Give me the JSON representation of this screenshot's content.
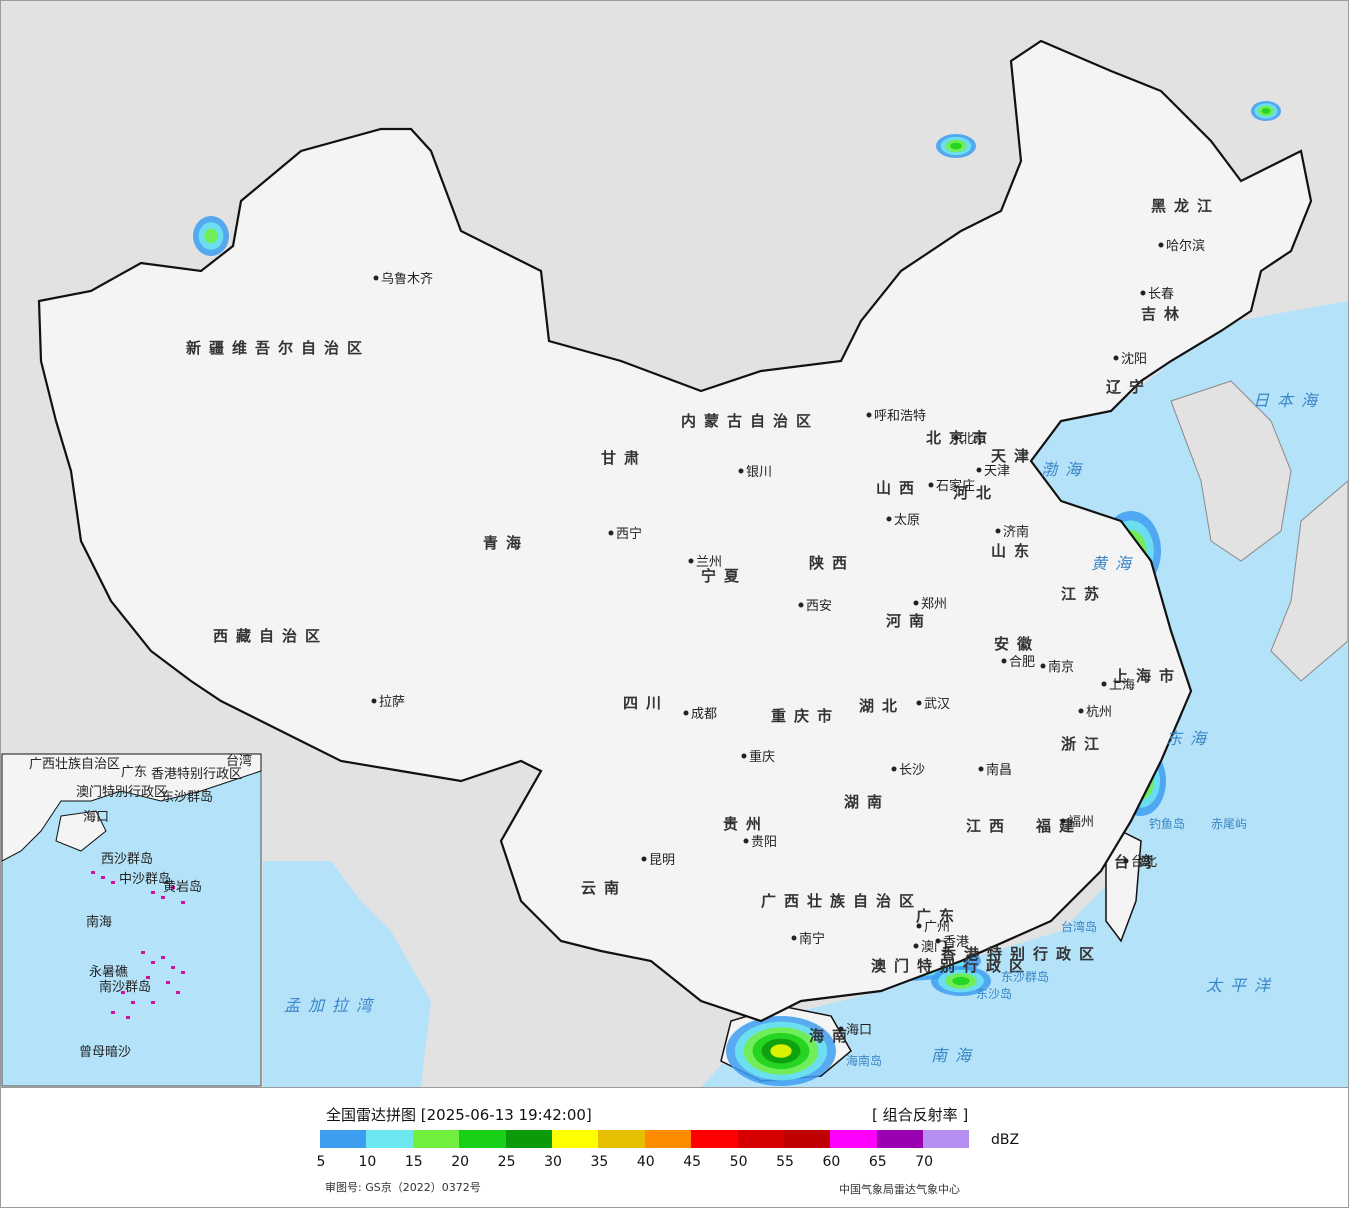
{
  "legend": {
    "title": "全国雷达拼图 [2025-06-13 19:42:00]",
    "product": "[ 组合反射率 ]",
    "unit": "dBZ",
    "scale_colors": [
      "#3d9ef0",
      "#6ee8f0",
      "#72f040",
      "#18d018",
      "#0a9a0a",
      "#ffff00",
      "#e6c000",
      "#ff8c00",
      "#ff0000",
      "#d60000",
      "#c00000",
      "#ff00ff",
      "#9900b0",
      "#b48ef0"
    ],
    "ticks": [
      "5",
      "10",
      "15",
      "20",
      "25",
      "30",
      "35",
      "40",
      "45",
      "50",
      "55",
      "60",
      "65",
      "70"
    ],
    "approval_number": "审图号: GS京（2022）0372号",
    "credit": "中国气象局雷达气象中心"
  },
  "map": {
    "colors": {
      "land": "#f4f4f4",
      "foreign": "#e2e2e2",
      "ocean": "#b4e2f8",
      "border": "#111111",
      "province": "#777777",
      "river": "#4fa4dc"
    },
    "regions": [
      "新疆维吾尔自治区",
      "西藏自治区",
      "青海",
      "四川",
      "云南",
      "贵州",
      "广西壮族自治区",
      "广东",
      "湖南",
      "湖北",
      "河南",
      "河北",
      "山东",
      "山西",
      "陕西",
      "甘肃",
      "内蒙古自治区",
      "黑龙江",
      "吉林",
      "辽宁",
      "江苏",
      "安徽",
      "浙江",
      "江西",
      "福建",
      "重庆市",
      "上海市",
      "海南",
      "台湾",
      "香港特别行政区",
      "澳门特别行政区",
      "宁夏",
      "北京市",
      "天津"
    ],
    "cities": [
      "乌鲁木齐",
      "拉萨",
      "西宁",
      "兰州",
      "银川",
      "呼和浩特",
      "北京",
      "天津",
      "石家庄",
      "太原",
      "济南",
      "郑州",
      "西安",
      "成都",
      "重庆",
      "武汉",
      "合肥",
      "南京",
      "上海",
      "杭州",
      "长沙",
      "南昌",
      "福州",
      "贵阳",
      "昆明",
      "南宁",
      "广州",
      "香港",
      "澳门",
      "海口",
      "台北",
      "哈尔滨",
      "长春",
      "沈阳"
    ],
    "seas": [
      "日本海",
      "渤海",
      "黄海",
      "东海",
      "太平洋",
      "南海",
      "孟加拉湾"
    ],
    "islands": [
      "钓鱼岛",
      "赤尾屿",
      "台湾岛",
      "东沙群岛",
      "东沙岛",
      "海南岛"
    ],
    "inset": {
      "labels": [
        "广西壮族自治区",
        "广东",
        "台湾",
        "香港特别行政区",
        "澳门特别行政区",
        "东沙群岛",
        "海口",
        "西沙群岛",
        "中沙群岛",
        "黄岩岛",
        "南海",
        "永暑礁",
        "南沙群岛",
        "曾母暗沙"
      ]
    }
  }
}
